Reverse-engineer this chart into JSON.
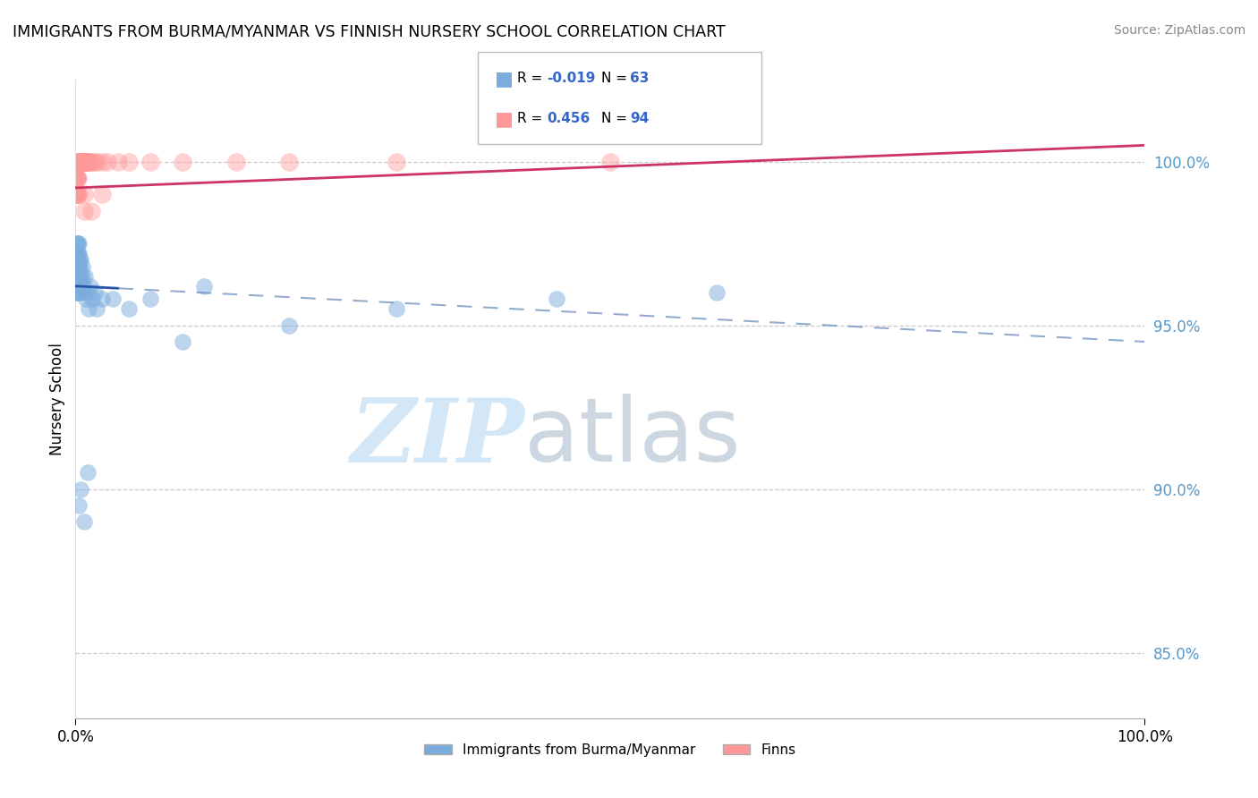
{
  "title": "IMMIGRANTS FROM BURMA/MYANMAR VS FINNISH NURSERY SCHOOL CORRELATION CHART",
  "source": "Source: ZipAtlas.com",
  "ylabel": "Nursery School",
  "legend_label_blue": "Immigrants from Burma/Myanmar",
  "legend_label_pink": "Finns",
  "blue_R": -0.019,
  "blue_N": 63,
  "pink_R": 0.456,
  "pink_N": 94,
  "blue_color": "#7aaddd",
  "pink_color": "#ff9999",
  "blue_line_color": "#2255aa",
  "pink_line_color": "#cc3366",
  "blue_dash_color": "#6688bb",
  "grid_color": "#cccccc",
  "tick_color": "#5599cc",
  "xlim": [
    0.0,
    100.0
  ],
  "ylim": [
    83.0,
    102.5
  ],
  "yticks": [
    85.0,
    90.0,
    95.0,
    100.0
  ],
  "blue_trend_start": 96.2,
  "blue_trend_end": 94.5,
  "blue_dash_start_x": 4.0,
  "blue_dash_end": 94.8,
  "pink_trend_start": 99.2,
  "pink_trend_end": 100.5,
  "blue_scatter_x": [
    0.05,
    0.06,
    0.07,
    0.08,
    0.09,
    0.1,
    0.1,
    0.11,
    0.12,
    0.13,
    0.14,
    0.15,
    0.15,
    0.16,
    0.17,
    0.18,
    0.19,
    0.2,
    0.2,
    0.21,
    0.22,
    0.23,
    0.24,
    0.25,
    0.25,
    0.26,
    0.27,
    0.28,
    0.29,
    0.3,
    0.32,
    0.35,
    0.38,
    0.4,
    0.45,
    0.5,
    0.55,
    0.6,
    0.65,
    0.7,
    0.8,
    0.9,
    1.0,
    1.1,
    1.2,
    1.4,
    1.6,
    1.8,
    2.0,
    2.5,
    3.5,
    5.0,
    7.0,
    10.0,
    12.0,
    20.0,
    30.0,
    45.0,
    60.0,
    0.3,
    0.5,
    0.8,
    1.1
  ],
  "blue_scatter_y": [
    96.8,
    97.2,
    96.5,
    97.0,
    96.2,
    97.5,
    96.0,
    97.2,
    96.8,
    96.5,
    97.0,
    96.3,
    97.5,
    96.0,
    97.2,
    96.8,
    96.5,
    97.0,
    96.2,
    97.5,
    96.0,
    96.8,
    97.2,
    96.5,
    97.0,
    96.3,
    97.5,
    96.0,
    97.2,
    96.8,
    96.5,
    97.0,
    96.3,
    96.8,
    96.5,
    97.0,
    96.2,
    96.8,
    96.5,
    96.0,
    96.2,
    96.5,
    95.8,
    96.0,
    95.5,
    96.2,
    95.8,
    96.0,
    95.5,
    95.8,
    95.8,
    95.5,
    95.8,
    94.5,
    96.2,
    95.0,
    95.5,
    95.8,
    96.0,
    89.5,
    90.0,
    89.0,
    90.5
  ],
  "pink_scatter_x": [
    0.05,
    0.08,
    0.1,
    0.12,
    0.15,
    0.18,
    0.2,
    0.22,
    0.25,
    0.28,
    0.3,
    0.32,
    0.35,
    0.38,
    0.4,
    0.42,
    0.45,
    0.48,
    0.5,
    0.52,
    0.55,
    0.58,
    0.6,
    0.62,
    0.65,
    0.68,
    0.7,
    0.72,
    0.75,
    0.78,
    0.8,
    0.82,
    0.85,
    0.88,
    0.9,
    0.92,
    0.95,
    0.98,
    1.0,
    1.05,
    1.1,
    1.2,
    1.3,
    1.5,
    1.8,
    2.0,
    2.5,
    3.0,
    4.0,
    5.0,
    0.06,
    0.09,
    0.11,
    0.13,
    0.16,
    0.19,
    0.21,
    0.23,
    0.26,
    0.29,
    0.31,
    0.33,
    0.36,
    0.39,
    0.41,
    0.43,
    0.46,
    0.49,
    0.51,
    0.53,
    7.0,
    10.0,
    15.0,
    20.0,
    30.0,
    50.0,
    0.07,
    0.14,
    0.21,
    0.28,
    0.77,
    0.84,
    1.5,
    2.5,
    0.04,
    0.05,
    0.06,
    0.07,
    0.08,
    0.09,
    0.1,
    0.11,
    0.12,
    0.13
  ],
  "pink_scatter_y": [
    100.0,
    100.0,
    100.0,
    100.0,
    100.0,
    100.0,
    100.0,
    100.0,
    100.0,
    100.0,
    100.0,
    100.0,
    100.0,
    100.0,
    100.0,
    100.0,
    100.0,
    100.0,
    100.0,
    100.0,
    100.0,
    100.0,
    100.0,
    100.0,
    100.0,
    100.0,
    100.0,
    100.0,
    100.0,
    100.0,
    100.0,
    100.0,
    100.0,
    100.0,
    100.0,
    100.0,
    100.0,
    100.0,
    100.0,
    100.0,
    100.0,
    100.0,
    100.0,
    100.0,
    100.0,
    100.0,
    100.0,
    100.0,
    100.0,
    100.0,
    100.0,
    100.0,
    100.0,
    100.0,
    100.0,
    100.0,
    100.0,
    100.0,
    100.0,
    100.0,
    100.0,
    100.0,
    100.0,
    100.0,
    100.0,
    100.0,
    100.0,
    100.0,
    100.0,
    100.0,
    100.0,
    100.0,
    100.0,
    100.0,
    100.0,
    100.0,
    99.5,
    99.0,
    99.5,
    99.0,
    98.5,
    99.0,
    98.5,
    99.0,
    99.5,
    99.5,
    99.0,
    99.5,
    99.0,
    99.0,
    99.5,
    99.0,
    99.5,
    99.0
  ]
}
